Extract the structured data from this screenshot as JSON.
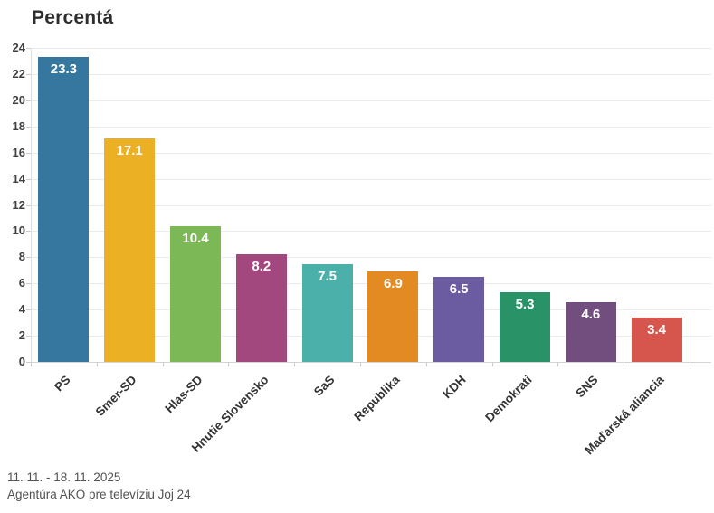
{
  "title": "Percentá",
  "footer": {
    "line1": "11. 11. - 18. 11. 2025",
    "line2": "Agentúra AKO pre televíziu Joj 24"
  },
  "chart_data": {
    "type": "bar",
    "title": "Percentá",
    "categories": [
      "PS",
      "Smer-SD",
      "Hlas-SD",
      "Hnutie Slovensko",
      "SaS",
      "Republika",
      "KDH",
      "Demokrati",
      "SNS",
      "Maďarská aliancia"
    ],
    "values": [
      23.3,
      17.1,
      10.4,
      8.2,
      7.5,
      6.9,
      6.5,
      5.3,
      4.6,
      3.4
    ],
    "colors": [
      "#35779f",
      "#ecb025",
      "#7cb956",
      "#a3487f",
      "#4bb0a9",
      "#e38b22",
      "#6b5ba0",
      "#2a9267",
      "#714e7e",
      "#d6554c"
    ],
    "value_label_color": "#ffffff",
    "xlabel": "",
    "ylabel": "",
    "ylim": [
      0,
      24
    ],
    "ytick_step": 2,
    "grid": "horizontal",
    "legend": "none",
    "value_labels_position": "inside-top"
  }
}
